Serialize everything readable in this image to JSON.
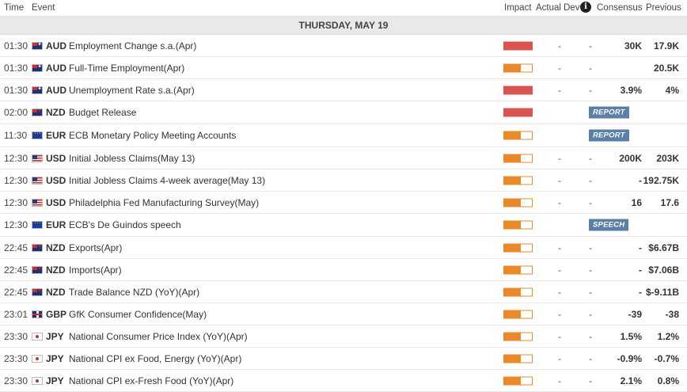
{
  "header": {
    "time": "Time",
    "event": "Event",
    "impact": "Impact",
    "actual": "Actual",
    "dev": "Dev",
    "info_icon": "i",
    "consensus": "Consensus",
    "previous": "Previous"
  },
  "day": "THURSDAY, MAY 19",
  "colors": {
    "high": "#d9534f",
    "medium": "#e8892b",
    "badge": "#5b7fa6"
  },
  "rows": [
    {
      "time": "01:30",
      "currency": "AUD",
      "flag": "aud",
      "event": "Employment Change s.a.(Apr)",
      "impact": "high",
      "actual": "-",
      "dev": "-",
      "consensus": "30K",
      "previous": "17.9K",
      "badge": ""
    },
    {
      "time": "01:30",
      "currency": "AUD",
      "flag": "aud",
      "event": "Full-Time Employment(Apr)",
      "impact": "medium",
      "actual": "-",
      "dev": "-",
      "consensus": "",
      "previous": "20.5K",
      "badge": ""
    },
    {
      "time": "01:30",
      "currency": "AUD",
      "flag": "aud",
      "event": "Unemployment Rate s.a.(Apr)",
      "impact": "high",
      "actual": "-",
      "dev": "-",
      "consensus": "3.9%",
      "previous": "4%",
      "badge": ""
    },
    {
      "time": "02:00",
      "currency": "NZD",
      "flag": "nzd",
      "event": "Budget Release",
      "impact": "high",
      "actual": "",
      "dev": "",
      "consensus": "",
      "previous": "",
      "badge": "REPORT"
    },
    {
      "time": "11:30",
      "currency": "EUR",
      "flag": "eur",
      "event": "ECB Monetary Policy Meeting Accounts",
      "impact": "medium",
      "actual": "",
      "dev": "",
      "consensus": "",
      "previous": "",
      "badge": "REPORT"
    },
    {
      "time": "12:30",
      "currency": "USD",
      "flag": "usd",
      "event": "Initial Jobless Claims(May 13)",
      "impact": "medium",
      "actual": "-",
      "dev": "-",
      "consensus": "200K",
      "previous": "203K",
      "badge": ""
    },
    {
      "time": "12:30",
      "currency": "USD",
      "flag": "usd",
      "event": "Initial Jobless Claims 4-week average(May 13)",
      "impact": "medium",
      "actual": "-",
      "dev": "-",
      "consensus": "-",
      "previous": "192.75K",
      "badge": ""
    },
    {
      "time": "12:30",
      "currency": "USD",
      "flag": "usd",
      "event": "Philadelphia Fed Manufacturing Survey(May)",
      "impact": "medium",
      "actual": "-",
      "dev": "-",
      "consensus": "16",
      "previous": "17.6",
      "badge": ""
    },
    {
      "time": "12:30",
      "currency": "EUR",
      "flag": "eur",
      "event": "ECB's De Guindos speech",
      "impact": "medium",
      "actual": "",
      "dev": "",
      "consensus": "",
      "previous": "",
      "badge": "SPEECH"
    },
    {
      "time": "22:45",
      "currency": "NZD",
      "flag": "nzd",
      "event": "Exports(Apr)",
      "impact": "medium",
      "actual": "-",
      "dev": "-",
      "consensus": "-",
      "previous": "$6.67B",
      "badge": ""
    },
    {
      "time": "22:45",
      "currency": "NZD",
      "flag": "nzd",
      "event": "Imports(Apr)",
      "impact": "medium",
      "actual": "-",
      "dev": "-",
      "consensus": "-",
      "previous": "$7.06B",
      "badge": ""
    },
    {
      "time": "22:45",
      "currency": "NZD",
      "flag": "nzd",
      "event": "Trade Balance NZD (YoY)(Apr)",
      "impact": "medium",
      "actual": "-",
      "dev": "-",
      "consensus": "-",
      "previous": "$-9.11B",
      "badge": ""
    },
    {
      "time": "23:01",
      "currency": "GBP",
      "flag": "gbp",
      "event": "GfK Consumer Confidence(May)",
      "impact": "medium",
      "actual": "-",
      "dev": "-",
      "consensus": "-39",
      "previous": "-38",
      "badge": ""
    },
    {
      "time": "23:30",
      "currency": "JPY",
      "flag": "jpy",
      "event": "National Consumer Price Index (YoY)(Apr)",
      "impact": "medium",
      "actual": "-",
      "dev": "-",
      "consensus": "1.5%",
      "previous": "1.2%",
      "badge": ""
    },
    {
      "time": "23:30",
      "currency": "JPY",
      "flag": "jpy",
      "event": "National CPI ex Food, Energy (YoY)(Apr)",
      "impact": "medium",
      "actual": "-",
      "dev": "-",
      "consensus": "-0.9%",
      "previous": "-0.7%",
      "badge": ""
    },
    {
      "time": "23:30",
      "currency": "JPY",
      "flag": "jpy",
      "event": "National CPI ex-Fresh Food (YoY)(Apr)",
      "impact": "medium",
      "actual": "-",
      "dev": "-",
      "consensus": "2.1%",
      "previous": "0.8%",
      "badge": ""
    }
  ]
}
